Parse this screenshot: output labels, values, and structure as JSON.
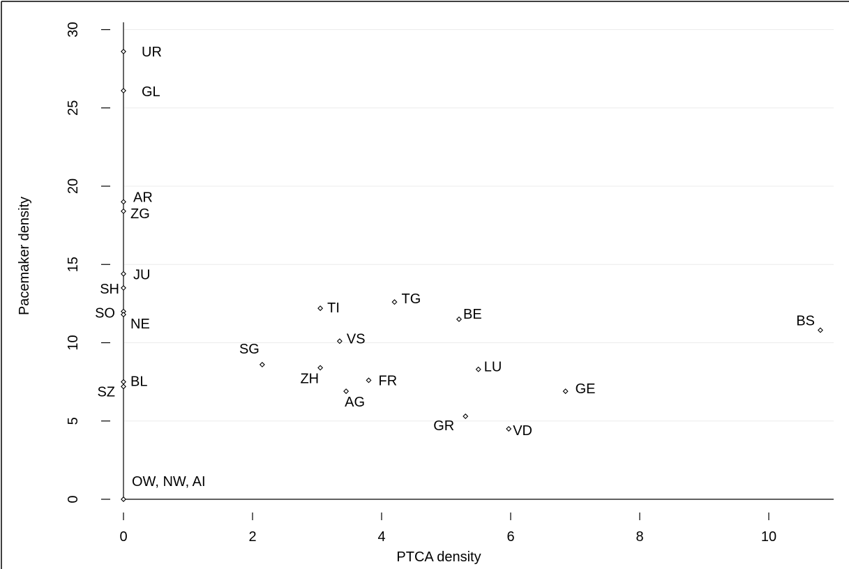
{
  "chart_data": {
    "type": "scatter",
    "title": "",
    "xlabel": "PTCA density",
    "ylabel": "Pacemaker density",
    "xlim": [
      0,
      11
    ],
    "ylim": [
      0,
      31
    ],
    "xticks": [
      0,
      2,
      4,
      6,
      8,
      10
    ],
    "yticks": [
      0,
      5,
      10,
      15,
      20,
      25,
      30
    ],
    "grid": "horizontal",
    "colors": {
      "marker": "#000000",
      "grid": "#ebebeb",
      "axis": "#000000"
    },
    "points": [
      {
        "label": "UR",
        "x": 0.0,
        "y": 28.6
      },
      {
        "label": "GL",
        "x": 0.0,
        "y": 26.1
      },
      {
        "label": "AR",
        "x": 0.0,
        "y": 19.0
      },
      {
        "label": "ZG",
        "x": 0.0,
        "y": 18.4
      },
      {
        "label": "JU",
        "x": 0.0,
        "y": 14.4
      },
      {
        "label": "SH",
        "x": 0.0,
        "y": 13.5
      },
      {
        "label": "SO",
        "x": 0.0,
        "y": 12.0
      },
      {
        "label": "NE",
        "x": 0.0,
        "y": 11.8
      },
      {
        "label": "BL",
        "x": 0.0,
        "y": 7.5
      },
      {
        "label": "SZ",
        "x": 0.0,
        "y": 7.2
      },
      {
        "label": "OW, NW, AI",
        "x": 0.0,
        "y": 0.0
      },
      {
        "label": "TI",
        "x": 3.05,
        "y": 12.2
      },
      {
        "label": "TG",
        "x": 4.2,
        "y": 12.6
      },
      {
        "label": "BE",
        "x": 5.2,
        "y": 11.5
      },
      {
        "label": "BS",
        "x": 10.8,
        "y": 10.8
      },
      {
        "label": "VS",
        "x": 3.35,
        "y": 10.1
      },
      {
        "label": "SG",
        "x": 2.15,
        "y": 8.6
      },
      {
        "label": "ZH",
        "x": 3.05,
        "y": 8.4
      },
      {
        "label": "LU",
        "x": 5.5,
        "y": 8.3
      },
      {
        "label": "FR",
        "x": 3.8,
        "y": 7.6
      },
      {
        "label": "AG",
        "x": 3.45,
        "y": 6.9
      },
      {
        "label": "GE",
        "x": 6.85,
        "y": 6.9
      },
      {
        "label": "GR",
        "x": 5.3,
        "y": 5.3
      },
      {
        "label": "VD",
        "x": 5.97,
        "y": 4.5
      }
    ]
  }
}
